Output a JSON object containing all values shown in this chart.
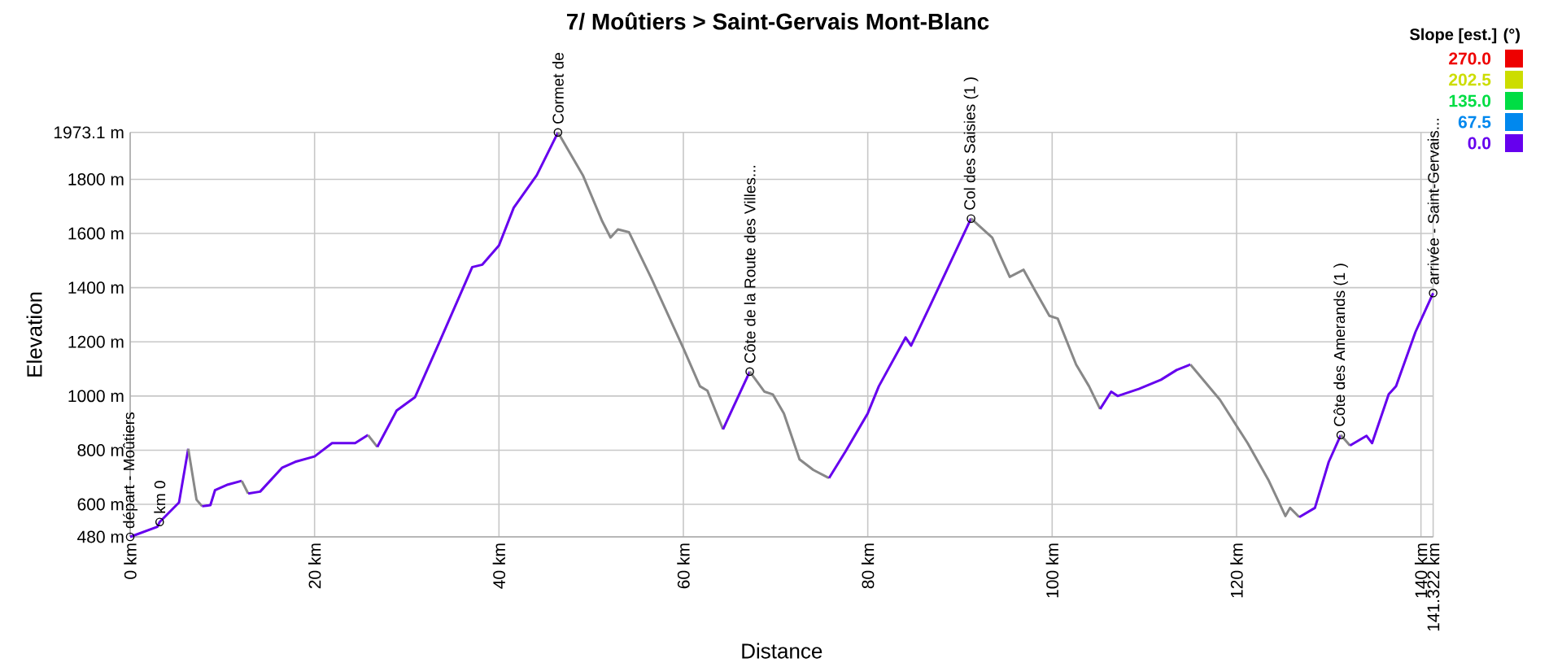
{
  "chart_data": {
    "type": "line",
    "title": "7/ Moûtiers > Saint-Gervais Mont-Blanc",
    "xlabel": "Distance",
    "ylabel": "Elevation",
    "xlim": [
      0,
      141.322
    ],
    "ylim": [
      480,
      1973.1
    ],
    "xticks": [
      {
        "value": 0,
        "label": "0 km"
      },
      {
        "value": 20,
        "label": "20 km"
      },
      {
        "value": 40,
        "label": "40 km"
      },
      {
        "value": 60,
        "label": "60 km"
      },
      {
        "value": 80,
        "label": "80 km"
      },
      {
        "value": 100,
        "label": "100 km"
      },
      {
        "value": 120,
        "label": "120 km"
      },
      {
        "value": 140,
        "label": "140 km"
      },
      {
        "value": 141.322,
        "label": "141.322 km"
      }
    ],
    "yticks": [
      {
        "value": 480,
        "label": "480 m"
      },
      {
        "value": 600,
        "label": "600 m"
      },
      {
        "value": 800,
        "label": "800 m"
      },
      {
        "value": 1000,
        "label": "1000 m"
      },
      {
        "value": 1200,
        "label": "1200 m"
      },
      {
        "value": 1400,
        "label": "1400 m"
      },
      {
        "value": 1600,
        "label": "1600 m"
      },
      {
        "value": 1800,
        "label": "1800 m"
      },
      {
        "value": 1973.1,
        "label": "1973.1 m"
      }
    ],
    "grid": true,
    "series": [
      {
        "color": "#6600ee",
        "x": [
          0,
          2.95,
          3.2,
          5.3,
          6.3
        ],
        "values": [
          480,
          517,
          535,
          607,
          805
        ]
      },
      {
        "color": "#888888",
        "x": [
          6.3,
          7.2,
          7.8
        ],
        "values": [
          805,
          617,
          593
        ]
      },
      {
        "color": "#6600ee",
        "x": [
          7.8,
          8.7,
          9.2,
          10.6,
          12.1
        ],
        "values": [
          593,
          597,
          652,
          673,
          687
        ]
      },
      {
        "color": "#888888",
        "x": [
          12.1,
          12.8
        ],
        "values": [
          687,
          640
        ]
      },
      {
        "color": "#6600ee",
        "x": [
          12.8,
          14.1,
          16.5,
          17.9,
          20.0,
          21.9,
          24.4,
          25.8
        ],
        "values": [
          640,
          647,
          736,
          757,
          777,
          826,
          826,
          856
        ]
      },
      {
        "color": "#888888",
        "x": [
          25.8,
          26.8
        ],
        "values": [
          856,
          812
        ]
      },
      {
        "color": "#6600ee",
        "x": [
          26.8,
          28.9,
          30.9,
          33.5,
          37.1,
          38.2,
          40.0,
          41.6,
          44.1,
          46.4
        ],
        "values": [
          812,
          946,
          996,
          1196,
          1476,
          1485,
          1556,
          1695,
          1815,
          1973
        ]
      },
      {
        "color": "#888888",
        "x": [
          46.4,
          49.1,
          51.2,
          52.1,
          52.9,
          54.1,
          56.5,
          60.0,
          61.8,
          62.6,
          64.3
        ],
        "values": [
          1973,
          1815,
          1645,
          1585,
          1615,
          1605,
          1437,
          1176,
          1036,
          1020,
          877
        ]
      },
      {
        "color": "#6600ee",
        "x": [
          64.3,
          67.2
        ],
        "values": [
          877,
          1090
        ]
      },
      {
        "color": "#888888",
        "x": [
          67.2,
          68.8,
          69.7,
          70.9,
          72.6,
          74.1,
          75.8
        ],
        "values": [
          1090,
          1016,
          1006,
          936,
          766,
          727,
          697
        ]
      },
      {
        "color": "#6600ee",
        "x": [
          75.8,
          77.6,
          80.0,
          81.2,
          84.1,
          84.7,
          86.8,
          91.2
        ],
        "values": [
          697,
          796,
          936,
          1036,
          1216,
          1186,
          1336,
          1655
        ]
      },
      {
        "color": "#888888",
        "x": [
          91.2,
          93.5,
          94.4,
          95.4,
          96.9,
          98.2,
          99.7,
          100.6,
          102.6,
          104.0,
          105.2
        ],
        "values": [
          1655,
          1585,
          1515,
          1440,
          1466,
          1386,
          1296,
          1286,
          1116,
          1036,
          952
        ]
      },
      {
        "color": "#6600ee",
        "x": [
          105.2,
          106.4,
          107.1,
          109.4,
          111.8,
          113.5,
          115.0
        ],
        "values": [
          952,
          1016,
          1000,
          1026,
          1060,
          1096,
          1116
        ]
      },
      {
        "color": "#888888",
        "x": [
          115.0,
          118.2,
          121.2,
          123.5,
          125.3,
          125.8,
          126.8
        ],
        "values": [
          1116,
          986,
          826,
          687,
          557,
          587,
          553
        ]
      },
      {
        "color": "#6600ee",
        "x": [
          126.8,
          128.5,
          130.0,
          131.3
        ],
        "values": [
          553,
          587,
          757,
          856
        ]
      },
      {
        "color": "#888888",
        "x": [
          131.3,
          132.3
        ],
        "values": [
          856,
          817
        ]
      },
      {
        "color": "#6600ee",
        "x": [
          132.3,
          134.1,
          134.7,
          136.5,
          137.3,
          139.4,
          141.322
        ],
        "values": [
          817,
          853,
          826,
          1006,
          1036,
          1236,
          1380
        ]
      }
    ],
    "annotations": [
      {
        "text": "départ - Moûtiers",
        "x": 0,
        "y": 480
      },
      {
        "text": "km 0",
        "x": 3.2,
        "y": 535
      },
      {
        "text": "Cormet de",
        "x": 46.4,
        "y": 1973
      },
      {
        "text": "Côte de la Route des Villes...",
        "x": 67.2,
        "y": 1090
      },
      {
        "text": "Col des Saisies (1 )",
        "x": 91.2,
        "y": 1655
      },
      {
        "text": "Côte des Amerands (1 )",
        "x": 131.3,
        "y": 856
      },
      {
        "text": "arrivée - Saint-Gervais...",
        "x": 141.322,
        "y": 1380
      },
      "Slope [est.] (°)",
      "270.0",
      "202.5",
      "135.0",
      "67.5",
      "0.0"
    ]
  }
}
